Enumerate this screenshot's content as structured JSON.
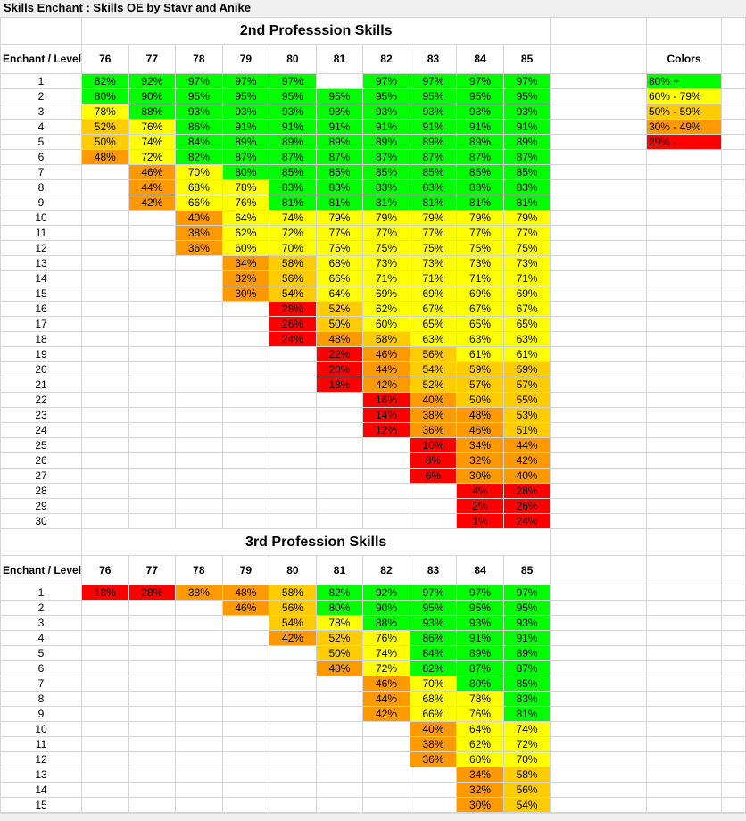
{
  "window": {
    "title": "Skills Enchant : Skills OE by Stavr and Anike"
  },
  "colors": {
    "green": "#00ff00",
    "yellow": "#ffff00",
    "orange": "#ffcc00",
    "darkorange": "#ff9900",
    "red": "#ff0000"
  },
  "legend": {
    "title": "Colors",
    "items": [
      {
        "label": "80% +",
        "color": "green"
      },
      {
        "label": "60% - 79%",
        "color": "yellow"
      },
      {
        "label": "50% - 59%",
        "color": "orange"
      },
      {
        "label": "30% - 49%",
        "color": "darkorange"
      },
      {
        "label": "29% -",
        "color": "red"
      }
    ]
  },
  "tables": [
    {
      "title": "2nd Professsion Skills",
      "header_label": "Enchant / Level",
      "columns": [
        "76",
        "77",
        "78",
        "79",
        "80",
        "81",
        "82",
        "83",
        "84",
        "85"
      ],
      "rows": [
        [
          "1",
          "82%",
          "92%",
          "97%",
          "97%",
          "97%",
          "",
          "97%",
          "97%",
          "97%",
          "97%"
        ],
        [
          "2",
          "80%",
          "90%",
          "95%",
          "95%",
          "95%",
          "95%",
          "95%",
          "95%",
          "95%",
          "95%"
        ],
        [
          "3",
          "78%",
          "88%",
          "93%",
          "93%",
          "93%",
          "93%",
          "93%",
          "93%",
          "93%",
          "93%"
        ],
        [
          "4",
          "52%",
          "76%",
          "86%",
          "91%",
          "91%",
          "91%",
          "91%",
          "91%",
          "91%",
          "91%"
        ],
        [
          "5",
          "50%",
          "74%",
          "84%",
          "89%",
          "89%",
          "89%",
          "89%",
          "89%",
          "89%",
          "89%"
        ],
        [
          "6",
          "48%",
          "72%",
          "82%",
          "87%",
          "87%",
          "87%",
          "87%",
          "87%",
          "87%",
          "87%"
        ],
        [
          "7",
          "",
          "46%",
          "70%",
          "80%",
          "85%",
          "85%",
          "85%",
          "85%",
          "85%",
          "85%"
        ],
        [
          "8",
          "",
          "44%",
          "68%",
          "78%",
          "83%",
          "83%",
          "83%",
          "83%",
          "83%",
          "83%"
        ],
        [
          "9",
          "",
          "42%",
          "66%",
          "76%",
          "81%",
          "81%",
          "81%",
          "81%",
          "81%",
          "81%"
        ],
        [
          "10",
          "",
          "",
          "40%",
          "64%",
          "74%",
          "79%",
          "79%",
          "79%",
          "79%",
          "79%"
        ],
        [
          "11",
          "",
          "",
          "38%",
          "62%",
          "72%",
          "77%",
          "77%",
          "77%",
          "77%",
          "77%"
        ],
        [
          "12",
          "",
          "",
          "36%",
          "60%",
          "70%",
          "75%",
          "75%",
          "75%",
          "75%",
          "75%"
        ],
        [
          "13",
          "",
          "",
          "",
          "34%",
          "58%",
          "68%",
          "73%",
          "73%",
          "73%",
          "73%"
        ],
        [
          "14",
          "",
          "",
          "",
          "32%",
          "56%",
          "66%",
          "71%",
          "71%",
          "71%",
          "71%"
        ],
        [
          "15",
          "",
          "",
          "",
          "30%",
          "54%",
          "64%",
          "69%",
          "69%",
          "69%",
          "69%"
        ],
        [
          "16",
          "",
          "",
          "",
          "",
          "28%",
          "52%",
          "62%",
          "67%",
          "67%",
          "67%"
        ],
        [
          "17",
          "",
          "",
          "",
          "",
          "26%",
          "50%",
          "60%",
          "65%",
          "65%",
          "65%"
        ],
        [
          "18",
          "",
          "",
          "",
          "",
          "24%",
          "48%",
          "58%",
          "63%",
          "63%",
          "63%"
        ],
        [
          "19",
          "",
          "",
          "",
          "",
          "",
          "22%",
          "46%",
          "56%",
          "61%",
          "61%"
        ],
        [
          "20",
          "",
          "",
          "",
          "",
          "",
          "20%",
          "44%",
          "54%",
          "59%",
          "59%"
        ],
        [
          "21",
          "",
          "",
          "",
          "",
          "",
          "18%",
          "42%",
          "52%",
          "57%",
          "57%"
        ],
        [
          "22",
          "",
          "",
          "",
          "",
          "",
          "",
          "16%",
          "40%",
          "50%",
          "55%"
        ],
        [
          "23",
          "",
          "",
          "",
          "",
          "",
          "",
          "14%",
          "38%",
          "48%",
          "53%"
        ],
        [
          "24",
          "",
          "",
          "",
          "",
          "",
          "",
          "12%",
          "36%",
          "46%",
          "51%"
        ],
        [
          "25",
          "",
          "",
          "",
          "",
          "",
          "",
          "",
          "10%",
          "34%",
          "44%"
        ],
        [
          "26",
          "",
          "",
          "",
          "",
          "",
          "",
          "",
          "8%",
          "32%",
          "42%"
        ],
        [
          "27",
          "",
          "",
          "",
          "",
          "",
          "",
          "",
          "6%",
          "30%",
          "40%"
        ],
        [
          "28",
          "",
          "",
          "",
          "",
          "",
          "",
          "",
          "",
          "4%",
          "28%"
        ],
        [
          "29",
          "",
          "",
          "",
          "",
          "",
          "",
          "",
          "",
          "2%",
          "26%"
        ],
        [
          "30",
          "",
          "",
          "",
          "",
          "",
          "",
          "",
          "",
          "1%",
          "24%"
        ]
      ]
    },
    {
      "title": "3rd Profession Skills",
      "header_label": "Enchant / Level",
      "columns": [
        "76",
        "77",
        "78",
        "79",
        "80",
        "81",
        "82",
        "83",
        "84",
        "85"
      ],
      "rows": [
        [
          "1",
          "18%",
          "28%",
          "38%",
          "48%",
          "58%",
          "82%",
          "92%",
          "97%",
          "97%",
          "97%"
        ],
        [
          "2",
          "",
          "",
          "",
          "46%",
          "56%",
          "80%",
          "90%",
          "95%",
          "95%",
          "95%"
        ],
        [
          "3",
          "",
          "",
          "",
          "",
          "54%",
          "78%",
          "88%",
          "93%",
          "93%",
          "93%"
        ],
        [
          "4",
          "",
          "",
          "",
          "",
          "42%",
          "52%",
          "76%",
          "86%",
          "91%",
          "91%"
        ],
        [
          "5",
          "",
          "",
          "",
          "",
          "",
          "50%",
          "74%",
          "84%",
          "89%",
          "89%"
        ],
        [
          "6",
          "",
          "",
          "",
          "",
          "",
          "48%",
          "72%",
          "82%",
          "87%",
          "87%"
        ],
        [
          "7",
          "",
          "",
          "",
          "",
          "",
          "",
          "46%",
          "70%",
          "80%",
          "85%"
        ],
        [
          "8",
          "",
          "",
          "",
          "",
          "",
          "",
          "44%",
          "68%",
          "78%",
          "83%"
        ],
        [
          "9",
          "",
          "",
          "",
          "",
          "",
          "",
          "42%",
          "66%",
          "76%",
          "81%"
        ],
        [
          "10",
          "",
          "",
          "",
          "",
          "",
          "",
          "",
          "40%",
          "64%",
          "74%"
        ],
        [
          "11",
          "",
          "",
          "",
          "",
          "",
          "",
          "",
          "38%",
          "62%",
          "72%"
        ],
        [
          "12",
          "",
          "",
          "",
          "",
          "",
          "",
          "",
          "36%",
          "60%",
          "70%"
        ],
        [
          "13",
          "",
          "",
          "",
          "",
          "",
          "",
          "",
          "",
          "34%",
          "58%"
        ],
        [
          "14",
          "",
          "",
          "",
          "",
          "",
          "",
          "",
          "",
          "32%",
          "56%"
        ],
        [
          "15",
          "",
          "",
          "",
          "",
          "",
          "",
          "",
          "",
          "30%",
          "54%"
        ]
      ]
    }
  ]
}
